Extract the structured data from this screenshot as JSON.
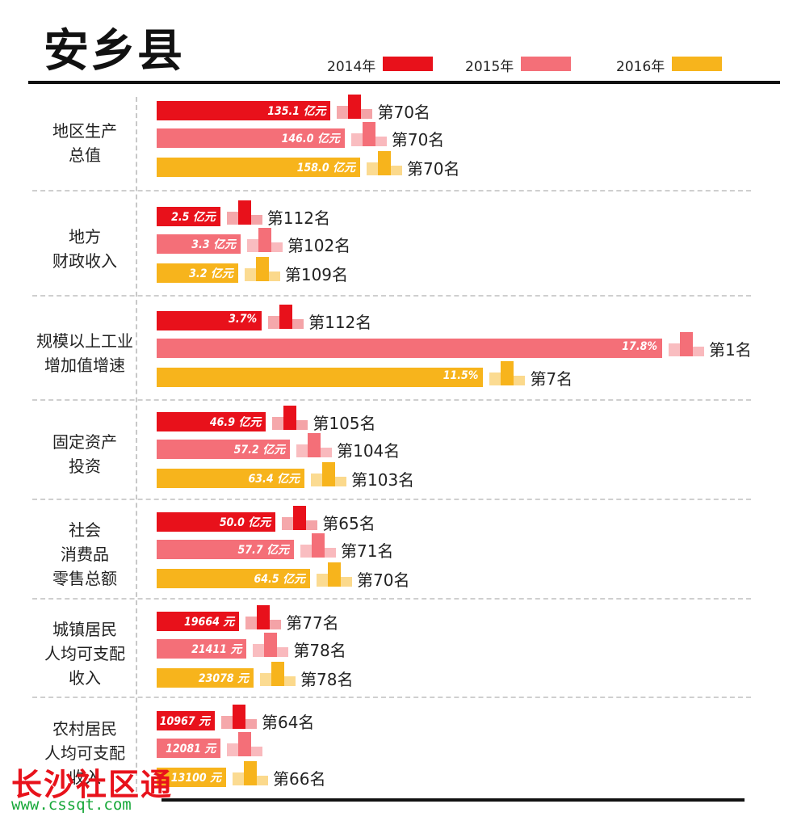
{
  "title": "安乡县",
  "legend": [
    {
      "label": "2014年",
      "color": "#e8111b"
    },
    {
      "label": "2015年",
      "color": "#f46f78"
    },
    {
      "label": "2016年",
      "color": "#f7b41c"
    }
  ],
  "watermark": {
    "text": "长沙社区通",
    "url": "www.cssqt.com"
  },
  "chart_data": {
    "type": "bar",
    "orientation": "horizontal",
    "title": "安乡县",
    "series_names": [
      "2014年",
      "2015年",
      "2016年"
    ],
    "categories": [
      {
        "label_lines": [
          "地区生产",
          "总值"
        ],
        "bars": [
          {
            "year": "2014年",
            "value": 135.1,
            "value_label": "135.1 亿元",
            "rank_label": "第70名"
          },
          {
            "year": "2015年",
            "value": 146.0,
            "value_label": "146.0 亿元",
            "rank_label": "第70名"
          },
          {
            "year": "2016年",
            "value": 158.0,
            "value_label": "158.0 亿元",
            "rank_label": "第70名"
          }
        ]
      },
      {
        "label_lines": [
          "地方",
          "财政收入"
        ],
        "bars": [
          {
            "year": "2014年",
            "value": 2.5,
            "value_label": "2.5 亿元",
            "rank_label": "第112名"
          },
          {
            "year": "2015年",
            "value": 3.3,
            "value_label": "3.3 亿元",
            "rank_label": "第102名"
          },
          {
            "year": "2016年",
            "value": 3.2,
            "value_label": "3.2 亿元",
            "rank_label": "第109名"
          }
        ]
      },
      {
        "label_lines": [
          "规模以上工业",
          "增加值增速"
        ],
        "bars": [
          {
            "year": "2014年",
            "value": 3.7,
            "value_label": "3.7%",
            "rank_label": "第112名"
          },
          {
            "year": "2015年",
            "value": 17.8,
            "value_label": "17.8%",
            "rank_label": "第1名"
          },
          {
            "year": "2016年",
            "value": 11.5,
            "value_label": "11.5%",
            "rank_label": "第7名"
          }
        ]
      },
      {
        "label_lines": [
          "固定资产",
          "投资"
        ],
        "bars": [
          {
            "year": "2014年",
            "value": 46.9,
            "value_label": "46.9 亿元",
            "rank_label": "第105名"
          },
          {
            "year": "2015年",
            "value": 57.2,
            "value_label": "57.2 亿元",
            "rank_label": "第104名"
          },
          {
            "year": "2016年",
            "value": 63.4,
            "value_label": "63.4 亿元",
            "rank_label": "第103名"
          }
        ]
      },
      {
        "label_lines": [
          "社会",
          "消费品",
          "零售总额"
        ],
        "bars": [
          {
            "year": "2014年",
            "value": 50.0,
            "value_label": "50.0 亿元",
            "rank_label": "第65名"
          },
          {
            "year": "2015年",
            "value": 57.7,
            "value_label": "57.7 亿元",
            "rank_label": "第71名"
          },
          {
            "year": "2016年",
            "value": 64.5,
            "value_label": "64.5 亿元",
            "rank_label": "第70名"
          }
        ]
      },
      {
        "label_lines": [
          "城镇居民",
          "人均可支配",
          "收入"
        ],
        "bars": [
          {
            "year": "2014年",
            "value": 19664,
            "value_label": "19664 元",
            "rank_label": "第77名"
          },
          {
            "year": "2015年",
            "value": 21411,
            "value_label": "21411 元",
            "rank_label": "第78名"
          },
          {
            "year": "2016年",
            "value": 23078,
            "value_label": "23078 元",
            "rank_label": "第78名"
          }
        ]
      },
      {
        "label_lines": [
          "农村居民",
          "人均可支配",
          "收入"
        ],
        "bars": [
          {
            "year": "2014年",
            "value": 10967,
            "value_label": "10967 元",
            "rank_label": "第64名"
          },
          {
            "year": "2015年",
            "value": 12081,
            "value_label": "12081 元",
            "rank_label": ""
          },
          {
            "year": "2016年",
            "value": 13100,
            "value_label": "13100 元",
            "rank_label": "第66名"
          }
        ]
      }
    ]
  }
}
